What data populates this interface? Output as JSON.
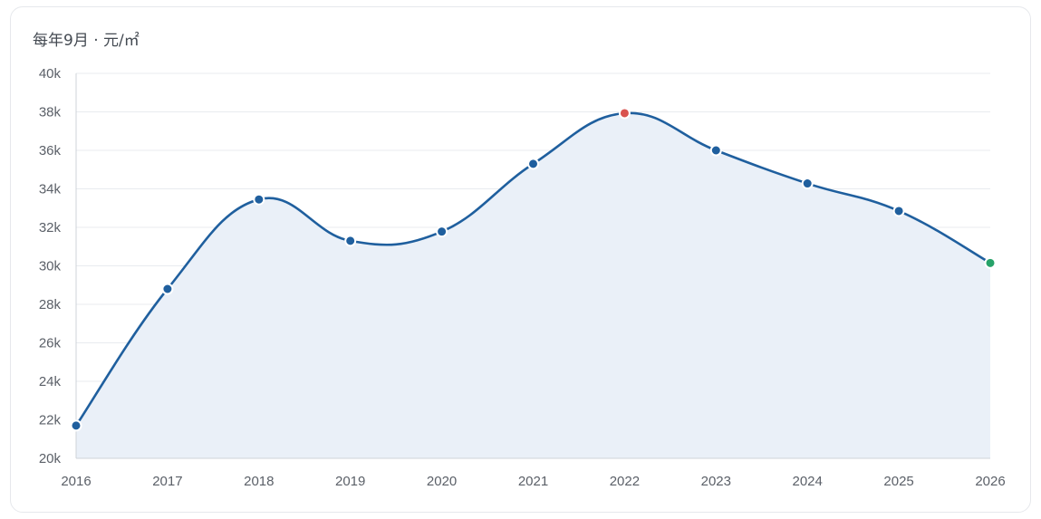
{
  "chart_data": {
    "type": "line",
    "title": "每年9月 · 元/㎡",
    "x": [
      "2016",
      "2017",
      "2018",
      "2019",
      "2020",
      "2021",
      "2022",
      "2023",
      "2024",
      "2025",
      "2026"
    ],
    "series": [
      {
        "values": [
          21700,
          28800,
          33450,
          31300,
          31780,
          35300,
          37930,
          36000,
          34280,
          32850,
          30150
        ]
      }
    ],
    "y_ticks": [
      "20k",
      "22k",
      "24k",
      "26k",
      "28k",
      "30k",
      "32k",
      "34k",
      "36k",
      "38k",
      "40k"
    ],
    "ylim": [
      20000,
      40000
    ],
    "grid": true,
    "area_fill": true,
    "highlight": {
      "max_index": 6,
      "last_index": 10
    },
    "colors": {
      "line": "#1f5f9e",
      "fill": "#eaf0f8",
      "marker": "#1f5f9e",
      "max_marker": "#d9534f",
      "last_marker": "#26a269",
      "grid": "#e8ebef",
      "axis": "#cfd3d8"
    }
  }
}
